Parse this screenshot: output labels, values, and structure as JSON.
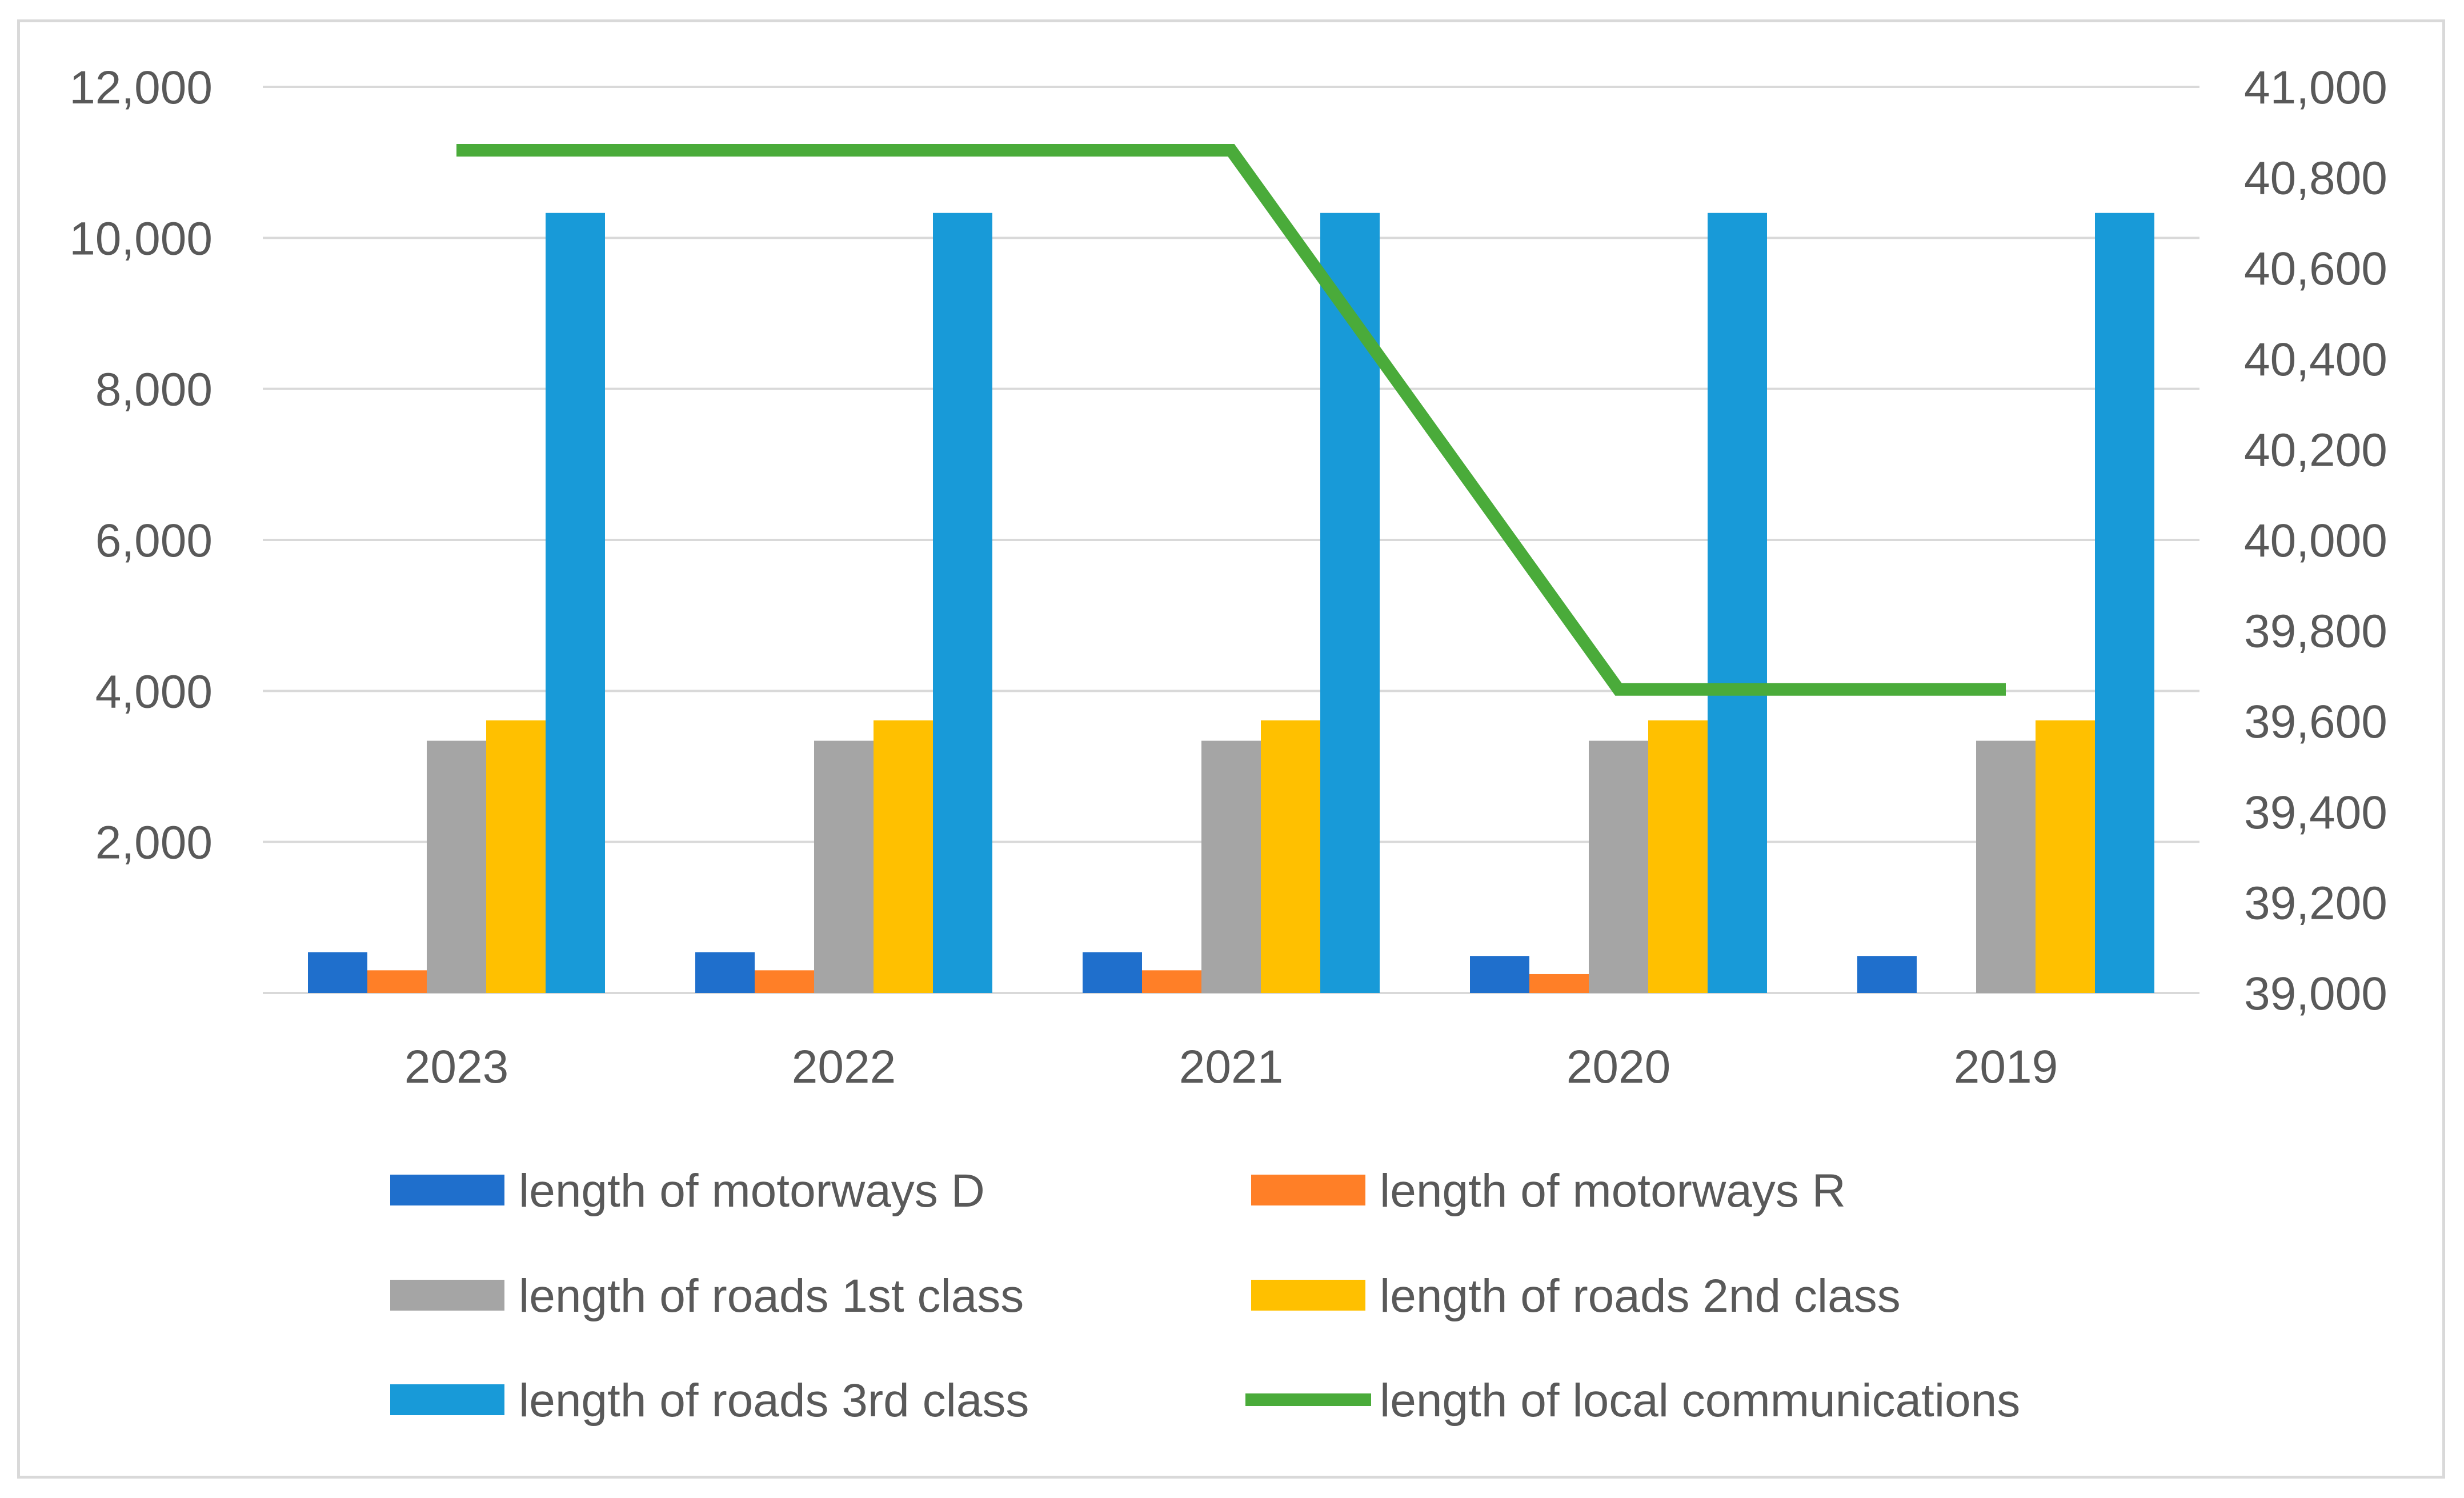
{
  "chart_data": {
    "type": "bar",
    "categories": [
      "2023",
      "2022",
      "2021",
      "2020",
      "2019"
    ],
    "series": [
      {
        "name": "length of motorways D",
        "type": "bar",
        "axis": "left",
        "color": "#1f6fcc",
        "values": [
          540,
          540,
          540,
          490,
          490
        ]
      },
      {
        "name": "length of motorways R",
        "type": "bar",
        "axis": "left",
        "color": "#ff7f27",
        "values": [
          300,
          300,
          300,
          250,
          0
        ]
      },
      {
        "name": "length of roads 1st class",
        "type": "bar",
        "axis": "left",
        "color": "#a5a5a5",
        "values": [
          3340,
          3340,
          3340,
          3340,
          3340
        ]
      },
      {
        "name": "length of roads 2nd class",
        "type": "bar",
        "axis": "left",
        "color": "#ffc000",
        "values": [
          3610,
          3610,
          3610,
          3610,
          3610
        ]
      },
      {
        "name": "length of roads 3rd class",
        "type": "bar",
        "axis": "left",
        "color": "#189ad8",
        "values": [
          10330,
          10330,
          10330,
          10330,
          10330
        ]
      },
      {
        "name": "length of local communications",
        "type": "line",
        "axis": "right",
        "color": "#4aab3a",
        "values": [
          40860,
          40860,
          40860,
          39670,
          39670
        ]
      }
    ],
    "y_left": {
      "min": 0,
      "max": 12000,
      "ticks": [
        "2,000",
        "4,000",
        "6,000",
        "8,000",
        "10,000",
        "12,000"
      ],
      "tick_values": [
        2000,
        4000,
        6000,
        8000,
        10000,
        12000
      ]
    },
    "y_right": {
      "min": 39000,
      "max": 41000,
      "ticks": [
        "39,000",
        "39,200",
        "39,400",
        "39,600",
        "39,800",
        "40,000",
        "40,200",
        "40,400",
        "40,600",
        "40,800",
        "41,000"
      ],
      "tick_values": [
        39000,
        39200,
        39400,
        39600,
        39800,
        40000,
        40200,
        40400,
        40600,
        40800,
        41000
      ]
    },
    "grid": true,
    "legend_position": "bottom",
    "title": "",
    "xlabel": "",
    "ylabel": ""
  }
}
